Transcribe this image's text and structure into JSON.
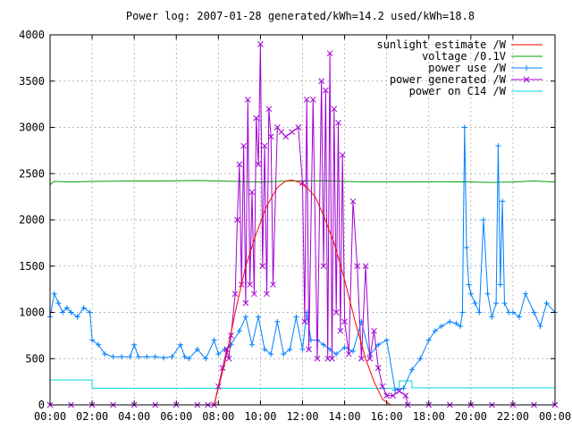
{
  "chart_data": {
    "type": "line",
    "title": "Power log: 2007-01-28 generated/kWh=14.2 used/kWh=18.8",
    "xlabel": "",
    "ylabel": "",
    "xlim": [
      0,
      24
    ],
    "ylim": [
      0,
      4000
    ],
    "x_ticks": [
      "00:00",
      "02:00",
      "04:00",
      "06:00",
      "08:00",
      "10:00",
      "12:00",
      "14:00",
      "16:00",
      "18:00",
      "20:00",
      "22:00",
      "00:00"
    ],
    "y_ticks": [
      "0",
      "500",
      "1000",
      "1500",
      "2000",
      "2500",
      "3000",
      "3500",
      "4000"
    ],
    "grid": true,
    "legend_position": "top-right",
    "series": [
      {
        "name": "sunlight estimate /W",
        "color": "#ff0000",
        "marker": "none",
        "x": [
          7.8,
          8.3,
          8.8,
          9.3,
          9.8,
          10.3,
          10.8,
          11.2,
          11.5,
          11.8,
          12.2,
          12.6,
          13.0,
          13.5,
          14.0,
          14.5,
          15.0,
          15.4,
          15.8,
          16.2
        ],
        "y": [
          0,
          450,
          1000,
          1500,
          1850,
          2150,
          2350,
          2420,
          2430,
          2410,
          2350,
          2250,
          2050,
          1750,
          1350,
          900,
          500,
          250,
          60,
          0
        ]
      },
      {
        "name": "voltage /0.1V",
        "color": "#00a000",
        "marker": "none",
        "x": [
          0,
          0.1,
          0.2,
          1,
          2,
          3,
          4,
          5,
          6,
          7,
          8,
          9,
          10,
          11,
          12,
          13,
          14,
          15,
          16,
          17,
          18,
          19,
          20,
          21,
          22,
          23,
          24
        ],
        "y": [
          2380,
          2400,
          2415,
          2410,
          2415,
          2418,
          2420,
          2420,
          2422,
          2425,
          2420,
          2415,
          2410,
          2418,
          2420,
          2422,
          2415,
          2410,
          2410,
          2410,
          2412,
          2412,
          2410,
          2405,
          2410,
          2420,
          2410
        ]
      },
      {
        "name": "power use /W",
        "color": "#0080ff",
        "marker": "+",
        "x": [
          0,
          0.2,
          0.4,
          0.6,
          0.8,
          1.0,
          1.3,
          1.6,
          1.9,
          2.0,
          2.3,
          2.6,
          3.0,
          3.4,
          3.8,
          4.0,
          4.2,
          4.6,
          5.0,
          5.4,
          5.8,
          6.2,
          6.4,
          6.6,
          7.0,
          7.4,
          7.8,
          8.0,
          8.3,
          8.6,
          9.0,
          9.3,
          9.6,
          9.9,
          10.2,
          10.5,
          10.8,
          11.1,
          11.4,
          11.7,
          12.0,
          12.2,
          12.4,
          12.7,
          13.0,
          13.3,
          13.6,
          14.0,
          14.4,
          14.8,
          15.2,
          15.6,
          16.0,
          16.4,
          16.8,
          17.2,
          17.6,
          18.0,
          18.3,
          18.6,
          19.0,
          19.3,
          19.5,
          19.6,
          19.7,
          19.8,
          19.9,
          20.0,
          20.2,
          20.4,
          20.6,
          20.8,
          21.0,
          21.2,
          21.3,
          21.4,
          21.5,
          21.6,
          21.8,
          22.0,
          22.3,
          22.6,
          23.0,
          23.3,
          23.6,
          24.0
        ],
        "y": [
          950,
          1200,
          1100,
          1000,
          1050,
          1000,
          950,
          1050,
          1000,
          700,
          650,
          550,
          520,
          520,
          520,
          650,
          520,
          520,
          520,
          510,
          520,
          650,
          520,
          500,
          600,
          500,
          700,
          550,
          600,
          650,
          800,
          950,
          650,
          950,
          600,
          550,
          900,
          550,
          600,
          950,
          600,
          1000,
          700,
          700,
          650,
          600,
          550,
          620,
          580,
          900,
          540,
          650,
          700,
          160,
          180,
          380,
          500,
          700,
          800,
          850,
          900,
          880,
          850,
          1000,
          3000,
          1700,
          1300,
          1200,
          1100,
          1000,
          2000,
          1200,
          950,
          1100,
          2800,
          1300,
          2200,
          1100,
          1000,
          1000,
          950,
          1200,
          1000,
          850,
          1100,
          1000
        ]
      },
      {
        "name": "power generated /W",
        "color": "#a000d0",
        "marker": "x",
        "x": [
          0,
          1,
          2,
          3,
          4,
          5,
          6,
          7,
          7.5,
          7.8,
          8.0,
          8.2,
          8.4,
          8.5,
          8.6,
          8.8,
          8.9,
          9.0,
          9.1,
          9.2,
          9.3,
          9.4,
          9.5,
          9.6,
          9.7,
          9.8,
          9.9,
          10.0,
          10.1,
          10.2,
          10.3,
          10.4,
          10.5,
          10.6,
          10.8,
          11.0,
          11.2,
          11.5,
          11.8,
          12.0,
          12.1,
          12.2,
          12.3,
          12.5,
          12.7,
          12.9,
          13.0,
          13.1,
          13.2,
          13.3,
          13.4,
          13.5,
          13.6,
          13.7,
          13.8,
          13.9,
          14.0,
          14.2,
          14.4,
          14.6,
          14.8,
          15.0,
          15.2,
          15.4,
          15.6,
          15.8,
          16.0,
          16.3,
          16.6,
          16.9,
          17.0,
          18,
          19,
          20,
          21,
          22,
          23,
          24
        ],
        "y": [
          0,
          0,
          0,
          0,
          0,
          0,
          0,
          0,
          0,
          0,
          200,
          400,
          600,
          500,
          750,
          1200,
          2000,
          2600,
          1300,
          2800,
          1100,
          3300,
          1300,
          2300,
          1200,
          3100,
          2600,
          3900,
          1500,
          2800,
          1200,
          3200,
          2900,
          1300,
          3000,
          2950,
          2900,
          2950,
          3000,
          2400,
          900,
          3300,
          600,
          3300,
          500,
          3500,
          1500,
          3400,
          500,
          3800,
          500,
          3200,
          1000,
          3050,
          800,
          2700,
          900,
          550,
          2200,
          1500,
          500,
          1500,
          500,
          800,
          400,
          200,
          100,
          100,
          150,
          100,
          0,
          0,
          0,
          0,
          0,
          0,
          0,
          0
        ]
      },
      {
        "name": "power on C14 /W",
        "color": "#00d8d8",
        "marker": "none",
        "x": [
          0,
          2.0,
          2.0,
          16.6,
          16.6,
          17.2,
          17.2,
          24
        ],
        "y": [
          270,
          270,
          180,
          180,
          260,
          260,
          185,
          185
        ]
      }
    ]
  }
}
